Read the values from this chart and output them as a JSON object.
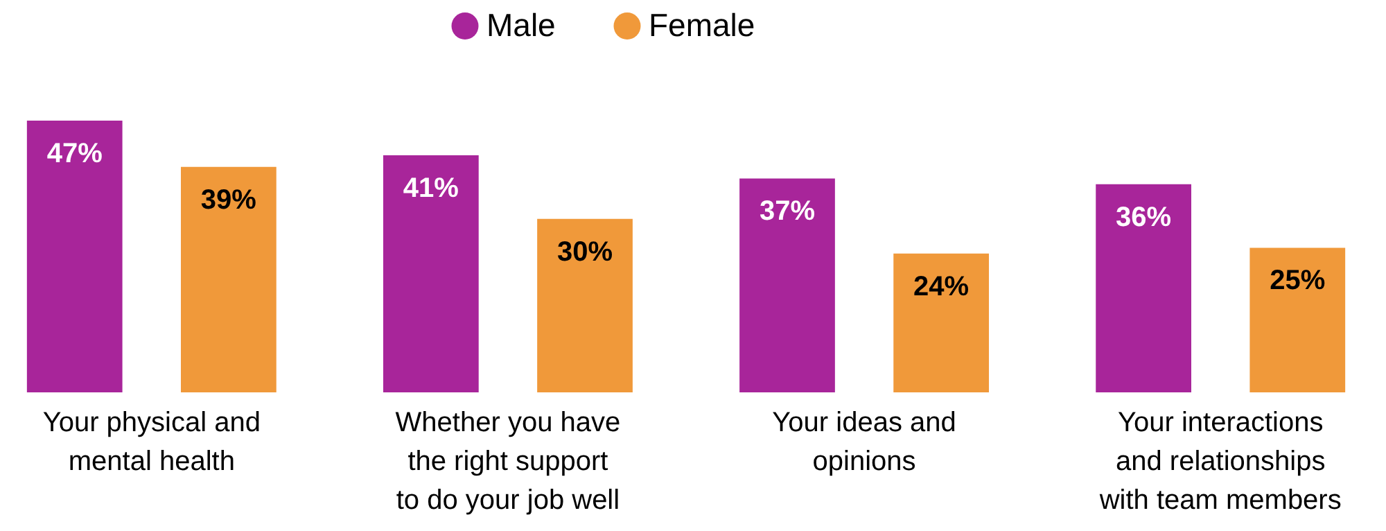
{
  "chart_data": {
    "type": "bar",
    "categories": [
      "Your physical and mental health",
      "Whether you have the right support to do your job well",
      "Your ideas and opinions",
      "Your interactions and relationships with team members"
    ],
    "series": [
      {
        "name": "Male",
        "color": "#a8259a",
        "values": [
          47,
          41,
          37,
          36
        ],
        "value_labels": [
          "47%",
          "41%",
          "37%",
          "36%"
        ]
      },
      {
        "name": "Female",
        "color": "#f0993a",
        "values": [
          39,
          30,
          24,
          25
        ],
        "value_labels": [
          "39%",
          "30%",
          "24%",
          "25%"
        ]
      }
    ],
    "legend": "top"
  }
}
